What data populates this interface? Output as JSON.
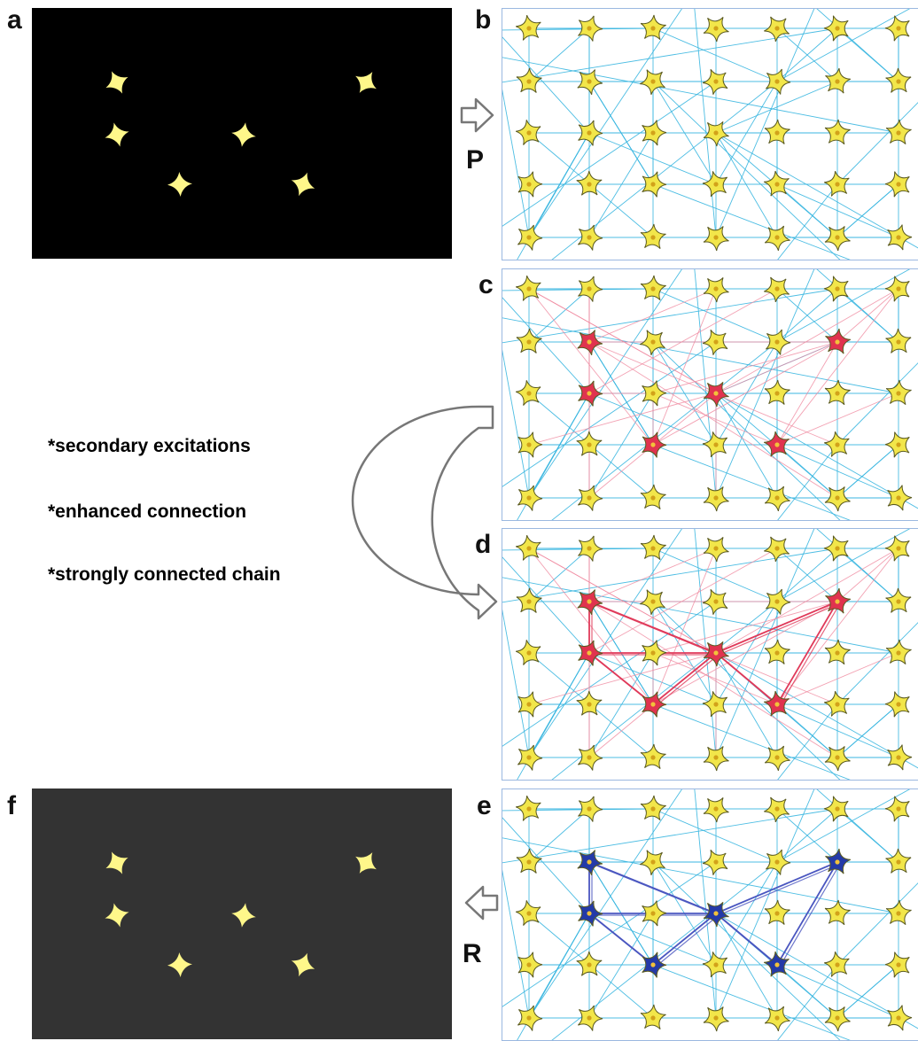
{
  "labels": {
    "a": "a",
    "b": "b",
    "c": "c",
    "d": "d",
    "e": "e",
    "f": "f",
    "P": "P",
    "R": "R"
  },
  "notes": [
    "*secondary excitations",
    "*enhanced connection",
    "*strongly connected chain"
  ],
  "colors": {
    "panel_a_bg": "#000000",
    "panel_f_bg": "#333333",
    "star_pattern": "#fff78a",
    "neuron_fill": "#f2e64a",
    "neuron_stroke": "#5a5a20",
    "neuron_nucleus": "#d2a21a",
    "connection_line": "#39b6e0",
    "excited_neuron": "#e0334f",
    "excited_line": "#f08aa0",
    "chain_line": "#e03a5a",
    "recall_neuron": "#243aa8",
    "recall_line": "#4a56c0",
    "arrow_stroke": "#777777"
  },
  "pattern": {
    "neurons": [
      [
        1,
        1
      ],
      [
        1,
        2
      ],
      [
        2,
        3
      ],
      [
        3,
        2
      ],
      [
        4,
        3
      ],
      [
        5,
        1
      ]
    ],
    "chain_edges": [
      [
        [
          1,
          1
        ],
        [
          1,
          2
        ]
      ],
      [
        [
          1,
          1
        ],
        [
          3,
          2
        ]
      ],
      [
        [
          1,
          2
        ],
        [
          2,
          3
        ]
      ],
      [
        [
          1,
          2
        ],
        [
          3,
          2
        ]
      ],
      [
        [
          2,
          3
        ],
        [
          3,
          2
        ]
      ],
      [
        [
          3,
          2
        ],
        [
          4,
          3
        ]
      ],
      [
        [
          3,
          2
        ],
        [
          5,
          1
        ]
      ],
      [
        [
          4,
          3
        ],
        [
          5,
          1
        ]
      ]
    ]
  }
}
